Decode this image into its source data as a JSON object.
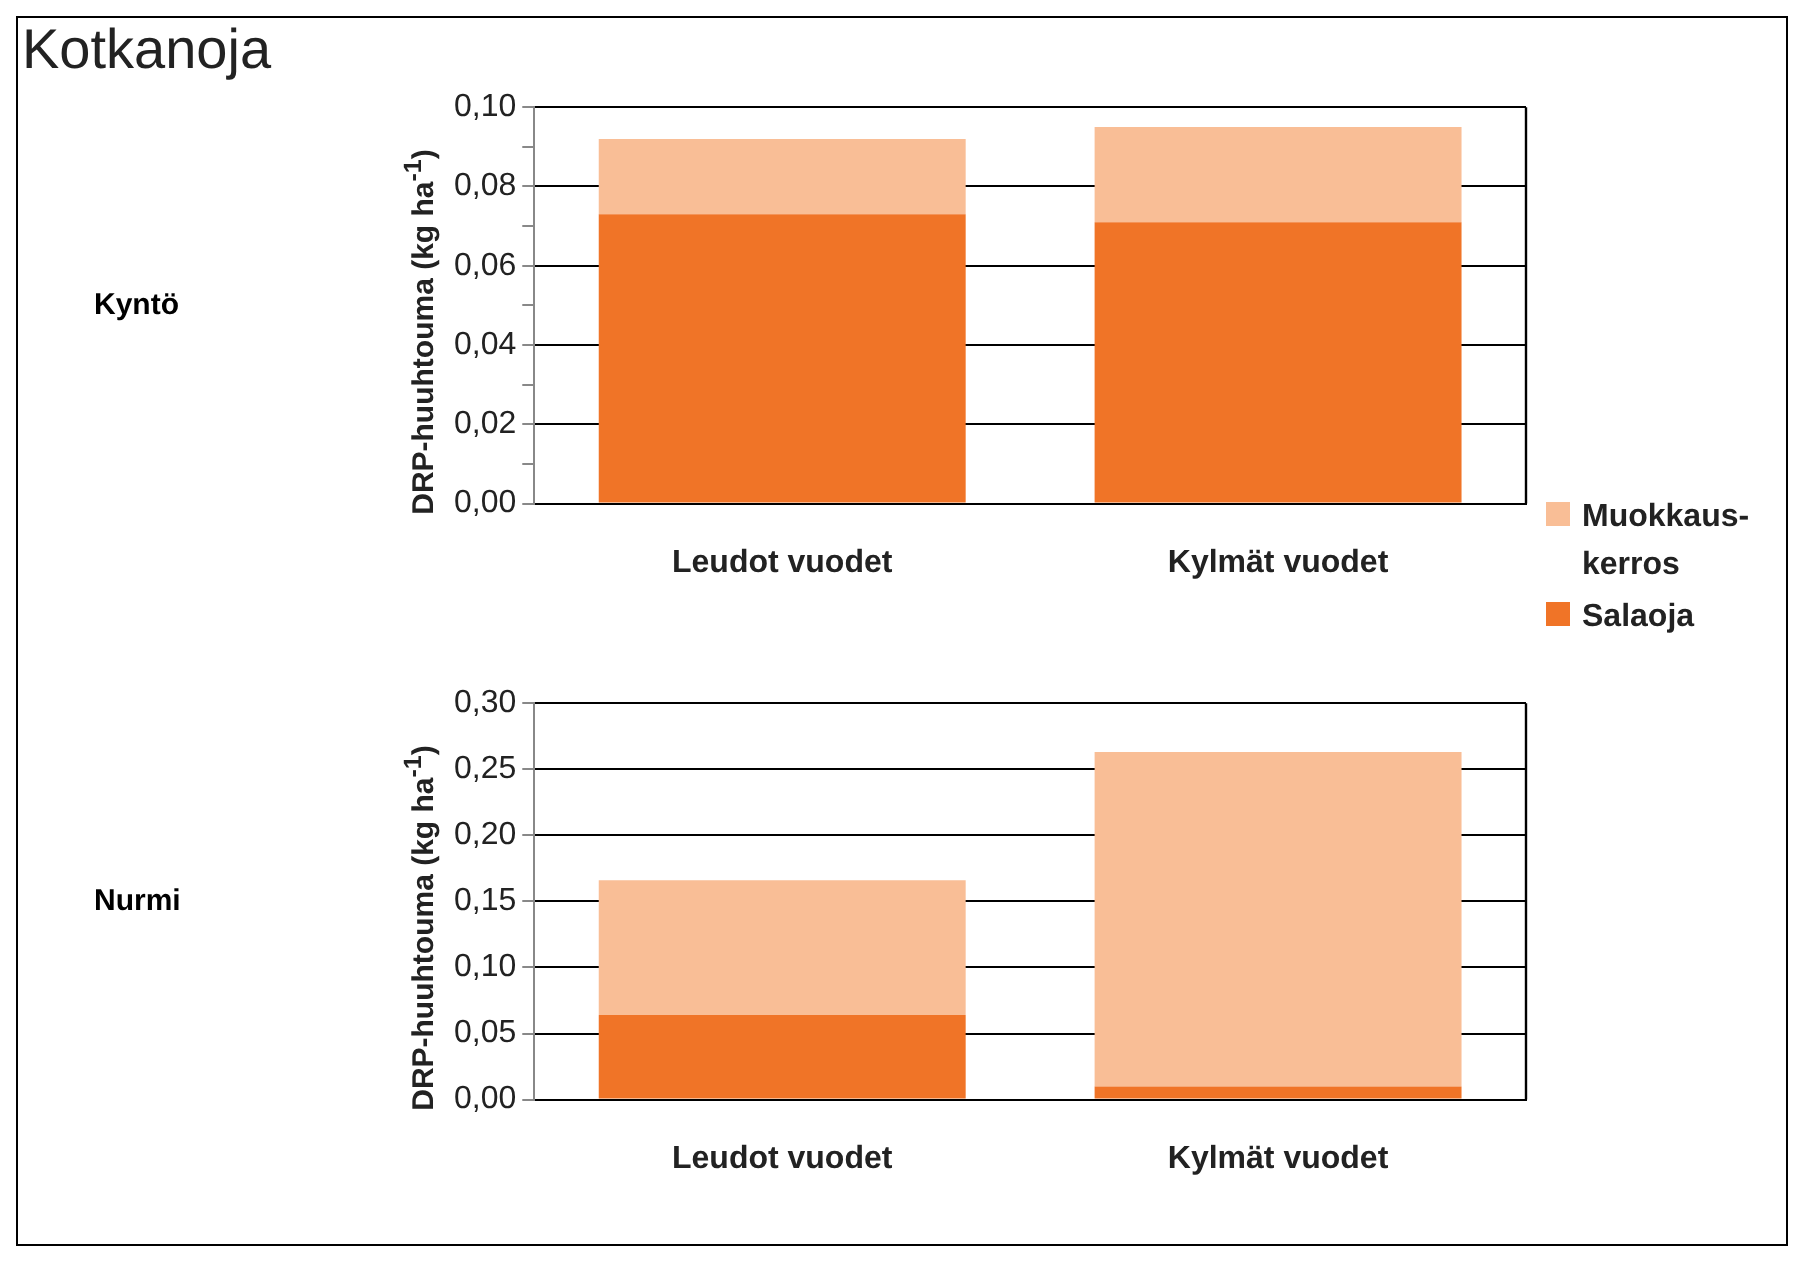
{
  "chart_data": [
    {
      "type": "bar",
      "title": "Kotkanoja",
      "annotations": [
        "Kyntö"
      ],
      "ylabel": "DRP-huuhtouma (kg ha$^{-1}$)",
      "categories": [
        "Leudot vuodet",
        "Kylmät vuodet"
      ],
      "stacked": true,
      "series": [
        {
          "name": "Salaoja",
          "color": "#f07427",
          "values": [
            0.073,
            0.071
          ]
        },
        {
          "name": "Muokkaus-kerros",
          "color": "#f9be96",
          "values": [
            0.019,
            0.024
          ]
        }
      ],
      "ylim": [
        0,
        0.1
      ],
      "yticks": [
        {
          "value": 0,
          "label": "0,00"
        },
        {
          "value": 0.01,
          "label": null
        },
        {
          "value": 0.02,
          "label": "0,02"
        },
        {
          "value": 0.03,
          "label": null
        },
        {
          "value": 0.04,
          "label": "0,04"
        },
        {
          "value": 0.05,
          "label": null
        },
        {
          "value": 0.06,
          "label": "0,06"
        },
        {
          "value": 0.07,
          "label": null
        },
        {
          "value": 0.08,
          "label": "0,08"
        },
        {
          "value": 0.09,
          "label": null
        },
        {
          "value": 0.1,
          "label": "0,10"
        }
      ],
      "grid": "y",
      "legend": "bottom right"
    },
    {
      "type": "bar",
      "annotations": [
        "Nurmi"
      ],
      "ylabel": "DRP-huuhtouma (kg ha$^{-1}$)",
      "categories": [
        "Leudot vuodet",
        "Kylmät vuodet"
      ],
      "stacked": true,
      "series": [
        {
          "color": "#f07427",
          "values": [
            0.064,
            0.01
          ]
        },
        {
          "color": "#f9be96",
          "values": [
            0.102,
            0.253
          ]
        }
      ],
      "ylim": [
        0,
        0.3
      ],
      "yticks": [
        {
          "value": 0,
          "label": "0,00"
        },
        {
          "value": 0.05,
          "label": "0,05"
        },
        {
          "value": 0.1,
          "label": "0,10"
        },
        {
          "value": 0.15,
          "label": "0,15"
        },
        {
          "value": 0.2,
          "label": "0,20"
        },
        {
          "value": 0.25,
          "label": "0,25"
        },
        {
          "value": 0.3,
          "label": "0,30"
        }
      ],
      "grid": "y",
      "legend": false
    }
  ]
}
